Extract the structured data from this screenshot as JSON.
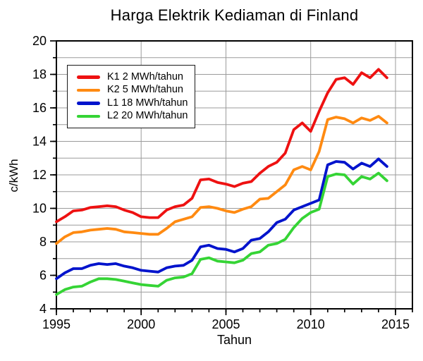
{
  "chart_data": {
    "type": "line",
    "title": "Harga Elektrik Kediaman di Finland",
    "xlabel": "Tahun",
    "ylabel": "c/kWh",
    "xlim": [
      1995,
      2016
    ],
    "ylim": [
      4,
      20
    ],
    "x_major_ticks": [
      1995,
      2000,
      2005,
      2010,
      2015
    ],
    "x_minor_step": 1,
    "y_major_ticks": [
      4,
      6,
      8,
      10,
      12,
      14,
      16,
      18,
      20
    ],
    "y_minor_step": 1,
    "grid": {
      "vertical_at": [
        2000,
        2005,
        2010,
        2015
      ],
      "horizontal_every": 1,
      "color": "#9b9b9b"
    },
    "legend_position": "upper-left",
    "x": [
      1995.0,
      1995.5,
      1996.0,
      1996.5,
      1997.0,
      1997.5,
      1998.0,
      1998.5,
      1999.0,
      1999.5,
      2000.0,
      2000.5,
      2001.0,
      2001.5,
      2002.0,
      2002.5,
      2003.0,
      2003.5,
      2004.0,
      2004.5,
      2005.0,
      2005.5,
      2006.0,
      2006.5,
      2007.0,
      2007.5,
      2008.0,
      2008.5,
      2009.0,
      2009.5,
      2010.0,
      2010.5,
      2011.0,
      2011.5,
      2012.0,
      2012.5,
      2013.0,
      2013.5,
      2014.0,
      2014.5
    ],
    "series": [
      {
        "name": "K1 2 MWh/tahun",
        "color": "#ee1111",
        "values": [
          9.2,
          9.5,
          9.85,
          9.9,
          10.05,
          10.1,
          10.15,
          10.1,
          9.9,
          9.75,
          9.5,
          9.45,
          9.45,
          9.9,
          10.1,
          10.2,
          10.6,
          11.7,
          11.75,
          11.55,
          11.45,
          11.3,
          11.5,
          11.6,
          12.1,
          12.5,
          12.75,
          13.3,
          14.7,
          15.1,
          14.6,
          15.8,
          16.9,
          17.7,
          17.8,
          17.4,
          18.1,
          17.8,
          18.3,
          17.8
        ]
      },
      {
        "name": "K2 5 MWh/tahun",
        "color": "#ff8a11",
        "values": [
          7.9,
          8.3,
          8.55,
          8.6,
          8.7,
          8.75,
          8.8,
          8.75,
          8.6,
          8.55,
          8.5,
          8.45,
          8.45,
          8.8,
          9.2,
          9.35,
          9.5,
          10.05,
          10.1,
          10.0,
          9.85,
          9.75,
          9.95,
          10.1,
          10.55,
          10.6,
          11.0,
          11.4,
          12.3,
          12.5,
          12.3,
          13.4,
          15.3,
          15.45,
          15.35,
          15.1,
          15.4,
          15.25,
          15.5,
          15.1
        ]
      },
      {
        "name": "L1 18 MWh/tahun",
        "color": "#0013cc",
        "values": [
          5.8,
          6.15,
          6.4,
          6.4,
          6.6,
          6.7,
          6.65,
          6.7,
          6.55,
          6.45,
          6.3,
          6.25,
          6.2,
          6.45,
          6.55,
          6.6,
          6.9,
          7.7,
          7.8,
          7.6,
          7.55,
          7.4,
          7.6,
          8.1,
          8.2,
          8.6,
          9.15,
          9.35,
          9.9,
          10.1,
          10.3,
          10.5,
          12.6,
          12.8,
          12.75,
          12.35,
          12.7,
          12.5,
          12.95,
          12.5
        ]
      },
      {
        "name": "L2 20 MWh/tahun",
        "color": "#35d435",
        "values": [
          4.85,
          5.15,
          5.3,
          5.35,
          5.6,
          5.8,
          5.8,
          5.75,
          5.65,
          5.55,
          5.45,
          5.4,
          5.35,
          5.7,
          5.85,
          5.9,
          6.1,
          6.95,
          7.05,
          6.85,
          6.8,
          6.75,
          6.9,
          7.3,
          7.4,
          7.8,
          7.9,
          8.15,
          8.85,
          9.4,
          9.75,
          9.95,
          11.9,
          12.05,
          12.0,
          11.45,
          11.9,
          11.75,
          12.1,
          11.65
        ]
      }
    ]
  }
}
